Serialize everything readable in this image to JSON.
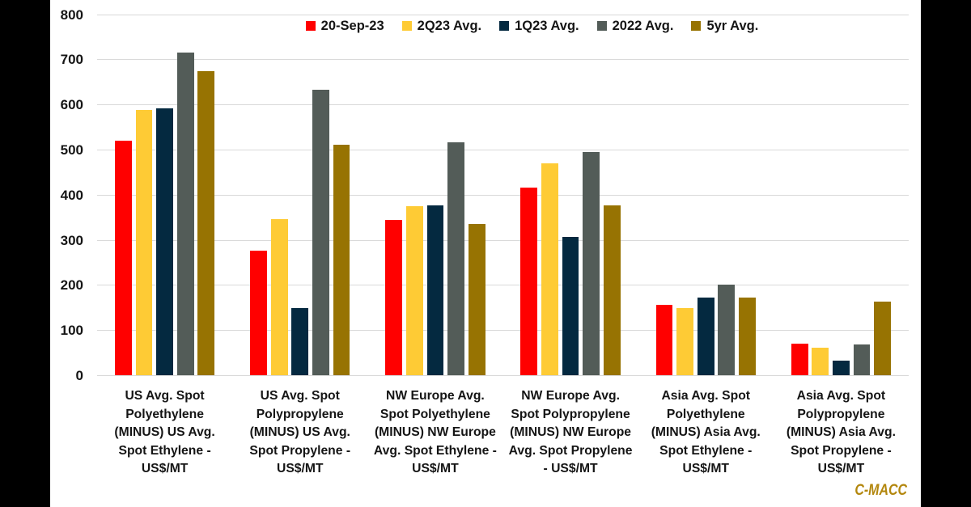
{
  "window": {
    "background": "#000000",
    "panel_background": "#ffffff"
  },
  "watermark": {
    "text": "C-MACC",
    "color": "#B3870E"
  },
  "chart_data": {
    "type": "bar",
    "title": "",
    "xlabel": "",
    "ylabel": "",
    "ylim": [
      0,
      800
    ],
    "ytick_interval": 100,
    "ytick_labels": [
      "0",
      "100",
      "200",
      "300",
      "400",
      "500",
      "600",
      "700",
      "800"
    ],
    "grid": true,
    "gridline_color": "#d9d9d9",
    "legend_position": "top-center",
    "text_color": "#151515",
    "categories": [
      "US Avg. Spot Polyethylene (MINUS) US Avg. Spot Ethylene - US$/MT",
      "US Avg. Spot Polypropylene (MINUS) US Avg. Spot Propylene - US$/MT",
      "NW Europe Avg. Spot Polyethylene (MINUS) NW Europe Avg. Spot Ethylene - US$/MT",
      "NW Europe Avg. Spot Polypropylene (MINUS) NW Europe Avg. Spot Propylene - US$/MT",
      "Asia Avg. Spot Polyethylene (MINUS) Asia Avg. Spot Ethylene - US$/MT",
      "Asia Avg. Spot Polypropylene (MINUS) Asia Avg. Spot Propylene - US$/MT"
    ],
    "category_label_lines": [
      [
        "US Avg. Spot",
        "Polyethylene",
        "(MINUS) US Avg.",
        "Spot Ethylene -",
        "US$/MT"
      ],
      [
        "US Avg. Spot",
        "Polypropylene",
        "(MINUS) US Avg.",
        "Spot Propylene -",
        "US$/MT"
      ],
      [
        "NW Europe Avg.",
        "Spot Polyethylene",
        "(MINUS) NW Europe",
        "Avg. Spot Ethylene -",
        "US$/MT"
      ],
      [
        "NW Europe Avg.",
        "Spot Polypropylene",
        "(MINUS) NW Europe",
        "Avg. Spot Propylene",
        "- US$/MT"
      ],
      [
        "Asia Avg. Spot",
        "Polyethylene",
        "(MINUS) Asia Avg.",
        "Spot Ethylene -",
        "US$/MT"
      ],
      [
        "Asia Avg. Spot",
        "Polypropylene",
        "(MINUS) Asia Avg.",
        "Spot Propylene -",
        "US$/MT"
      ]
    ],
    "series": [
      {
        "name": "20-Sep-23",
        "color": "#FF0000",
        "values": [
          521,
          277,
          345,
          416,
          157,
          70
        ]
      },
      {
        "name": "2Q23 Avg.",
        "color": "#FECB35",
        "values": [
          588,
          347,
          375,
          470,
          150,
          62
        ]
      },
      {
        "name": "1Q23 Avg.",
        "color": "#042940",
        "values": [
          592,
          150,
          377,
          307,
          172,
          33
        ]
      },
      {
        "name": "2022 Avg.",
        "color": "#535C58",
        "values": [
          716,
          633,
          516,
          495,
          202,
          68
        ]
      },
      {
        "name": "5yr Avg.",
        "color": "#977302",
        "values": [
          675,
          512,
          335,
          377,
          173,
          164
        ]
      }
    ]
  }
}
